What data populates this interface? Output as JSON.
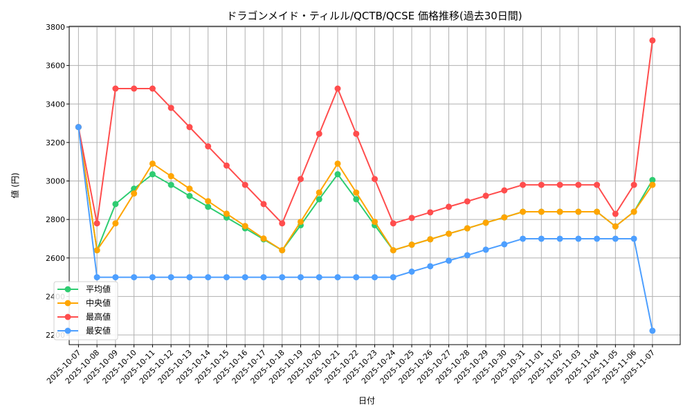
{
  "chart_data": {
    "type": "line",
    "title": "ドラゴンメイド・ティルル/QCTB/QCSE 価格推移(過去30日間)",
    "xlabel": "日付",
    "ylabel": "値 (円)",
    "ylim": [
      2200,
      3800
    ],
    "yticks": [
      2200,
      2400,
      2600,
      2800,
      3000,
      3200,
      3400,
      3600,
      3800
    ],
    "grid": true,
    "legend_position": "lower-left",
    "x": [
      "2025-10-07",
      "2025-10-08",
      "2025-10-09",
      "2025-10-10",
      "2025-10-11",
      "2025-10-12",
      "2025-10-13",
      "2025-10-14",
      "2025-10-15",
      "2025-10-16",
      "2025-10-17",
      "2025-10-18",
      "2025-10-19",
      "2025-10-20",
      "2025-10-21",
      "2025-10-22",
      "2025-10-23",
      "2025-10-24",
      "2025-10-25",
      "2025-10-26",
      "2025-10-27",
      "2025-10-28",
      "2025-10-29",
      "2025-10-30",
      "2025-10-31",
      "2025-11-01",
      "2025-11-02",
      "2025-11-03",
      "2025-11-04",
      "2025-11-05",
      "2025-11-06",
      "2025-11-07"
    ],
    "series": [
      {
        "name": "平均値",
        "color": "#2ecc71",
        "values": [
          3280,
          2640,
          2880,
          2960,
          3035,
          2980,
          2922,
          2866,
          2810,
          2754,
          2697,
          2640,
          2770,
          2905,
          3035,
          2905,
          2770,
          2640,
          2669,
          2697,
          2726,
          2754,
          2783,
          2811,
          2840,
          2840,
          2840,
          2840,
          2840,
          2764,
          2840,
          3005
        ]
      },
      {
        "name": "中央値",
        "color": "#ffa500",
        "values": [
          3280,
          2640,
          2780,
          2935,
          3090,
          3025,
          2960,
          2895,
          2830,
          2766,
          2701,
          2640,
          2788,
          2940,
          3090,
          2940,
          2788,
          2640,
          2669,
          2697,
          2726,
          2754,
          2783,
          2811,
          2840,
          2840,
          2840,
          2840,
          2840,
          2764,
          2840,
          2980
        ]
      },
      {
        "name": "最高値",
        "color": "#ff4d4d",
        "values": [
          3280,
          2780,
          3480,
          3480,
          3480,
          3380,
          3280,
          3180,
          3080,
          2980,
          2880,
          2780,
          3010,
          3245,
          3480,
          3245,
          3010,
          2780,
          2808,
          2837,
          2866,
          2894,
          2923,
          2951,
          2980,
          2980,
          2980,
          2980,
          2980,
          2829,
          2980,
          3730
        ]
      },
      {
        "name": "最安値",
        "color": "#4d9fff",
        "values": [
          3280,
          2500,
          2500,
          2500,
          2500,
          2500,
          2500,
          2500,
          2500,
          2500,
          2500,
          2500,
          2500,
          2500,
          2500,
          2500,
          2500,
          2500,
          2529,
          2557,
          2586,
          2614,
          2643,
          2671,
          2700,
          2700,
          2700,
          2700,
          2700,
          2700,
          2700,
          2222
        ]
      }
    ]
  }
}
